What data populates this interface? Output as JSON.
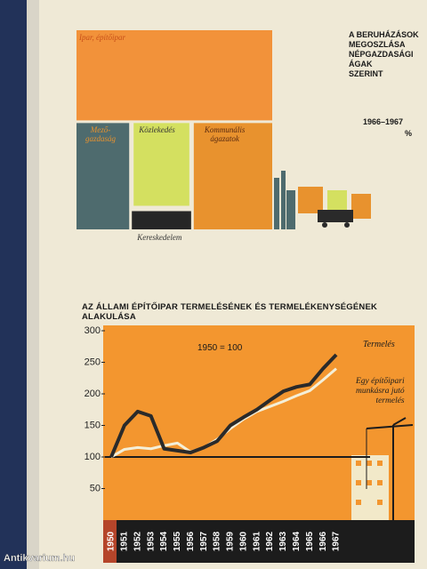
{
  "chart_data": [
    {
      "type": "treemap",
      "title": "A BERUHÁZÁSOK\nMEGOSZLÁSA\nNÉPGAZDASÁGI\nÁGAK\nSZERINT",
      "subtitle": "1966–1967",
      "unit_label": "%",
      "categories": [
        "Ipar, építőipar",
        "Mező-\ngazdaság",
        "Közlekedés",
        "Kommunális\nágazatok",
        "Kereskedelem"
      ],
      "values": [
        46.6,
        15.1,
        14.0,
        21.4,
        2.9
      ],
      "colors": [
        "#f2923a",
        "#4e6b6e",
        "#d4e060",
        "#e8922e",
        "#262626"
      ]
    },
    {
      "type": "line",
      "title": "AZ ÁLLAMI ÉPÍTŐIPAR TERMELÉSÉNEK ÉS TERMELÉKENYSÉGÉNEK ALAKULÁSA",
      "annotation": "1950 = 100",
      "categories": [
        "1950",
        "1951",
        "1952",
        "1953",
        "1954",
        "1955",
        "1956",
        "1957",
        "1958",
        "1959",
        "1960",
        "1961",
        "1962",
        "1963",
        "1964",
        "1965",
        "1966",
        "1967"
      ],
      "series": [
        {
          "name": "Termelés",
          "color": "#2a2a2a",
          "values": [
            100,
            150,
            172,
            165,
            113,
            110,
            107,
            115,
            125,
            150,
            163,
            175,
            190,
            204,
            211,
            215,
            240,
            262
          ]
        },
        {
          "name": "Egy építőipari\nmunkásra jutó\ntermelés",
          "color": "#f4efd8",
          "values": [
            100,
            112,
            115,
            113,
            118,
            122,
            108,
            115,
            128,
            145,
            160,
            172,
            180,
            188,
            197,
            205,
            222,
            240
          ]
        }
      ],
      "ylim": [
        0,
        300
      ],
      "yticks": [
        50,
        100,
        150,
        200,
        250,
        300
      ]
    }
  ],
  "watermark": "Antikvarium.hu"
}
